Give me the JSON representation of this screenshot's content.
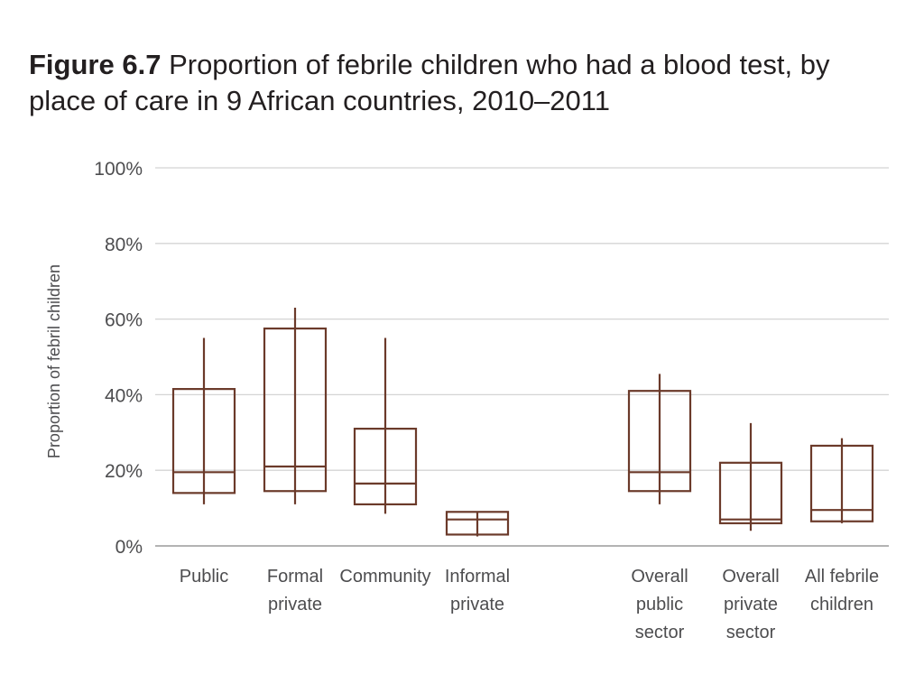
{
  "title": {
    "figure_number": "Figure 6.7",
    "text": "Proportion of febrile children who had a blood test, by place of care in 9 African countries, 2010–2011"
  },
  "chart_data": {
    "type": "box",
    "ylabel": "Proportion of febril children",
    "ylim": [
      0,
      100
    ],
    "yticks": [
      0,
      20,
      40,
      60,
      80,
      100
    ],
    "ytick_labels": [
      "0%",
      "20%",
      "40%",
      "60%",
      "80%",
      "100%"
    ],
    "grid": true,
    "colors": {
      "box": "#6b3a2a",
      "grid": "#d4d4d4",
      "text": "#4d4d4f"
    },
    "categories": [
      {
        "label_lines": [
          "Public"
        ],
        "min": 11,
        "q1": 14,
        "median": 19.5,
        "q3": 41.5,
        "max": 55
      },
      {
        "label_lines": [
          "Formal",
          "private"
        ],
        "min": 11,
        "q1": 14.5,
        "median": 21,
        "q3": 57.5,
        "max": 63
      },
      {
        "label_lines": [
          "Community"
        ],
        "min": 8.5,
        "q1": 11,
        "median": 16.5,
        "q3": 31,
        "max": 55
      },
      {
        "label_lines": [
          "Informal",
          "private"
        ],
        "min": 2.5,
        "q1": 3,
        "median": 7,
        "q3": 9,
        "max": 9
      },
      {
        "label_lines": [
          "Overall",
          "public",
          "sector"
        ],
        "min": 11,
        "q1": 14.5,
        "median": 19.5,
        "q3": 41,
        "max": 45.5
      },
      {
        "label_lines": [
          "Overall",
          "private",
          "sector"
        ],
        "min": 4,
        "q1": 6,
        "median": 7,
        "q3": 22,
        "max": 32.5
      },
      {
        "label_lines": [
          "All febrile",
          "children"
        ],
        "min": 6,
        "q1": 6.5,
        "median": 9.5,
        "q3": 26.5,
        "max": 28.5
      }
    ]
  }
}
